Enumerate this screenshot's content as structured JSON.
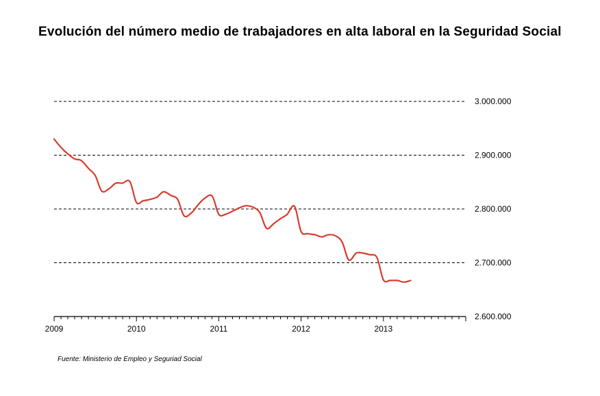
{
  "chart_data": {
    "type": "line",
    "title": "Evolución del número medio de trabajadores en alta laboral en la Seguridad Social",
    "source": "Fuente: Ministerio de Empleo y Seguriad Social",
    "xlabel": "",
    "ylabel": "",
    "x_tick_labels": [
      "2009",
      "2010",
      "2011",
      "2012",
      "2013"
    ],
    "y_ticks": [
      2600000,
      2700000,
      2800000,
      2900000,
      3000000
    ],
    "y_tick_labels": [
      "2.600.000",
      "2.700.000",
      "2.800.000",
      "2.900.000",
      "3.000.000"
    ],
    "ylim": [
      2600000,
      3000000
    ],
    "x_range_years": [
      2009,
      2014
    ],
    "y_axis_position": "right",
    "grid": "horizontal dashed",
    "colors": {
      "line": "#d93a2b",
      "grid": "#000000",
      "axis": "#000000"
    },
    "series": [
      {
        "x": [
          2009.0,
          2009.08,
          2009.17,
          2009.25,
          2009.33,
          2009.42,
          2009.5,
          2009.58,
          2009.67,
          2009.75,
          2009.83,
          2009.92,
          2010.0,
          2010.08,
          2010.17,
          2010.25,
          2010.33,
          2010.42,
          2010.5,
          2010.58,
          2010.67,
          2010.75,
          2010.83,
          2010.92,
          2011.0,
          2011.08,
          2011.17,
          2011.25,
          2011.33,
          2011.42,
          2011.5,
          2011.58,
          2011.67,
          2011.75,
          2011.83,
          2011.92,
          2012.0,
          2012.08,
          2012.17,
          2012.25,
          2012.33,
          2012.42,
          2012.5,
          2012.58,
          2012.67,
          2012.75,
          2012.83,
          2012.92,
          2013.0,
          2013.08,
          2013.17,
          2013.25,
          2013.33
        ],
        "values": [
          2930000,
          2915000,
          2902000,
          2893000,
          2890000,
          2875000,
          2862000,
          2833000,
          2838000,
          2848000,
          2848000,
          2851000,
          2812000,
          2815000,
          2818000,
          2822000,
          2832000,
          2825000,
          2818000,
          2787000,
          2793000,
          2808000,
          2820000,
          2824000,
          2790000,
          2790000,
          2796000,
          2802000,
          2806000,
          2803000,
          2793000,
          2764000,
          2773000,
          2782000,
          2790000,
          2805000,
          2758000,
          2754000,
          2752000,
          2748000,
          2752000,
          2750000,
          2738000,
          2705000,
          2718000,
          2718000,
          2715000,
          2710000,
          2668000,
          2667000,
          2667000,
          2664000,
          2667000
        ]
      }
    ]
  }
}
